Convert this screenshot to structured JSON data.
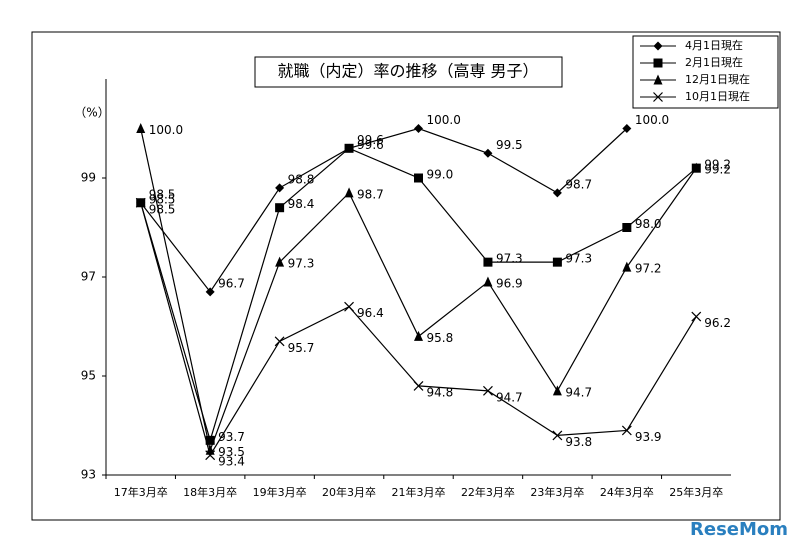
{
  "chart_data": {
    "type": "line",
    "title": "就職（内定）率の推移（高専 男子）",
    "y_label": "（%）",
    "categories": [
      "17年3月卒",
      "18年3月卒",
      "19年3月卒",
      "20年3月卒",
      "21年3月卒",
      "22年3月卒",
      "23年3月卒",
      "24年3月卒",
      "25年3月卒"
    ],
    "ylim": [
      93,
      101
    ],
    "yticks": [
      93,
      95,
      97,
      99
    ],
    "grid": false,
    "legend": "top-right",
    "series": [
      {
        "name": "4月1日現在",
        "color": "#000000",
        "marker": "diamond",
        "values": [
          98.5,
          96.7,
          98.8,
          99.6,
          100.0,
          99.5,
          98.7,
          100.0,
          null
        ],
        "value_labels": [
          "98.5",
          "96.7",
          "98.8",
          "99.6",
          "100.0",
          "99.5",
          "98.7",
          "100.0",
          null
        ]
      },
      {
        "name": "2月1日現在",
        "color": "#000000",
        "marker": "square",
        "values": [
          98.5,
          93.7,
          98.4,
          99.6,
          99.0,
          97.3,
          97.3,
          98.0,
          99.2
        ],
        "value_labels": [
          "98.5",
          "93.7",
          "98.4",
          "99.6",
          "99.0",
          "97.3",
          "97.3",
          "98.0",
          "99.2"
        ]
      },
      {
        "name": "12月1日現在",
        "color": "#000000",
        "marker": "triangle",
        "values": [
          100.0,
          93.5,
          97.3,
          98.7,
          95.8,
          96.9,
          94.7,
          97.2,
          99.2
        ],
        "value_labels": [
          "100.0",
          "93.5",
          "97.3",
          "98.7",
          "95.8",
          "96.9",
          "94.7",
          "97.2",
          "99.2"
        ]
      },
      {
        "name": "10月1日現在",
        "color": "#000000",
        "marker": "x",
        "values": [
          98.5,
          93.4,
          95.7,
          96.4,
          94.8,
          94.7,
          93.8,
          93.9,
          96.2
        ],
        "value_labels": [
          "98.5",
          "93.4",
          "95.7",
          "96.4",
          "94.8",
          "94.7",
          "93.8",
          "93.9",
          "96.2"
        ]
      }
    ]
  },
  "watermark": "ReseMom"
}
